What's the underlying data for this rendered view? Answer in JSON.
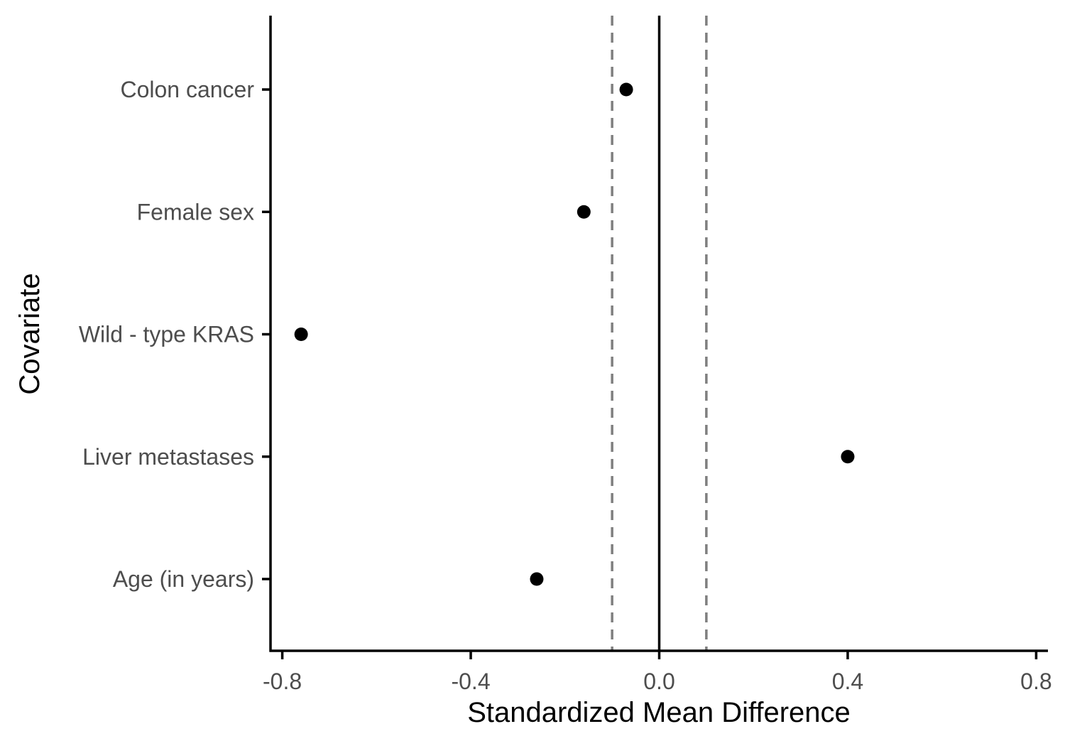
{
  "chart_data": {
    "type": "scatter",
    "title": "",
    "xlabel": "Standardized Mean Difference",
    "ylabel": "Covariate",
    "categories": [
      "Colon cancer",
      "Female sex",
      "Wild - type KRAS",
      "Liver metastases",
      "Age (in years)"
    ],
    "values": [
      -0.07,
      -0.16,
      -0.76,
      0.4,
      -0.26
    ],
    "xlim": [
      -0.825,
      0.825
    ],
    "xticks": [
      -0.8,
      -0.4,
      0.0,
      0.4,
      0.8
    ],
    "xtick_labels": [
      "-0.8",
      "-0.4",
      "0.0",
      "0.4",
      "0.8"
    ],
    "reference_lines": [
      {
        "x": 0.0,
        "style": "solid"
      },
      {
        "x": -0.1,
        "style": "dashed"
      },
      {
        "x": 0.1,
        "style": "dashed"
      }
    ],
    "grid": false,
    "legend": "none",
    "colors": {
      "points": "#000000",
      "axis": "#000000",
      "dashed": "#7f7f7f",
      "tick_text": "#4d4d4d"
    }
  }
}
